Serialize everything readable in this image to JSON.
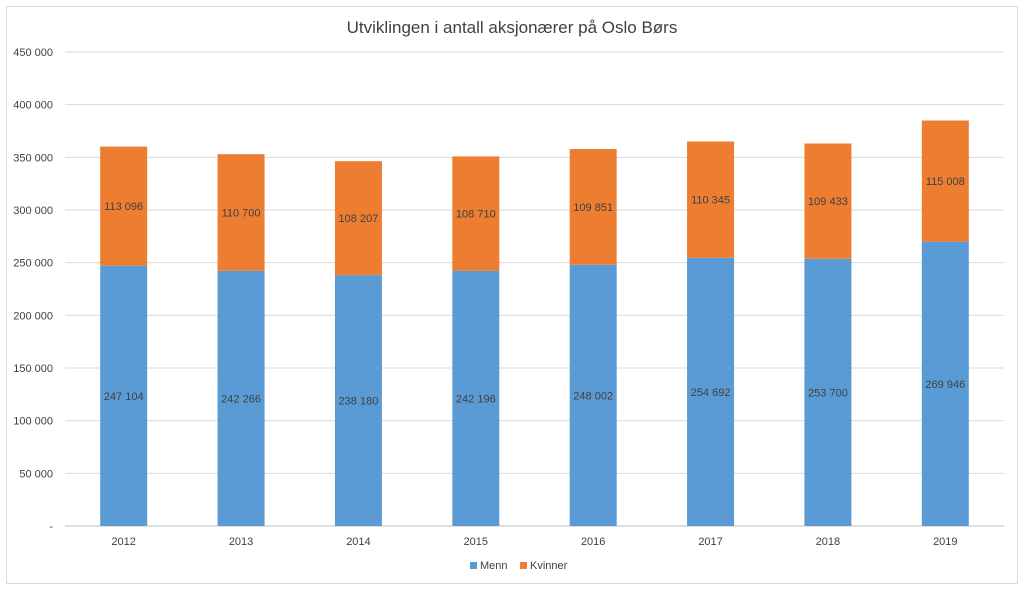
{
  "chart_data": {
    "type": "bar",
    "stacked": true,
    "title": "Utviklingen i antall aksjonærer på Oslo Børs",
    "xlabel": "",
    "ylabel": "",
    "ylim": [
      0,
      450000
    ],
    "yticks": [
      "-",
      "50 000",
      "100 000",
      "150 000",
      "200 000",
      "250 000",
      "300 000",
      "350 000",
      "400 000",
      "450 000"
    ],
    "categories": [
      "2012",
      "2013",
      "2014",
      "2015",
      "2016",
      "2017",
      "2018",
      "2019"
    ],
    "series": [
      {
        "name": "Menn",
        "color": "#5b9bd5",
        "values": [
          247104,
          242266,
          238180,
          242196,
          248002,
          254692,
          253700,
          269946
        ],
        "labels": [
          "247 104",
          "242 266",
          "238 180",
          "242 196",
          "248 002",
          "254 692",
          "253 700",
          "269 946"
        ]
      },
      {
        "name": "Kvinner",
        "color": "#ed7d31",
        "values": [
          113096,
          110700,
          108207,
          108710,
          109851,
          110345,
          109433,
          115008
        ],
        "labels": [
          "113 096",
          "110 700",
          "108 207",
          "108 710",
          "109 851",
          "110 345",
          "109 433",
          "115 008"
        ]
      }
    ],
    "grid": true,
    "legend": "bottom"
  }
}
